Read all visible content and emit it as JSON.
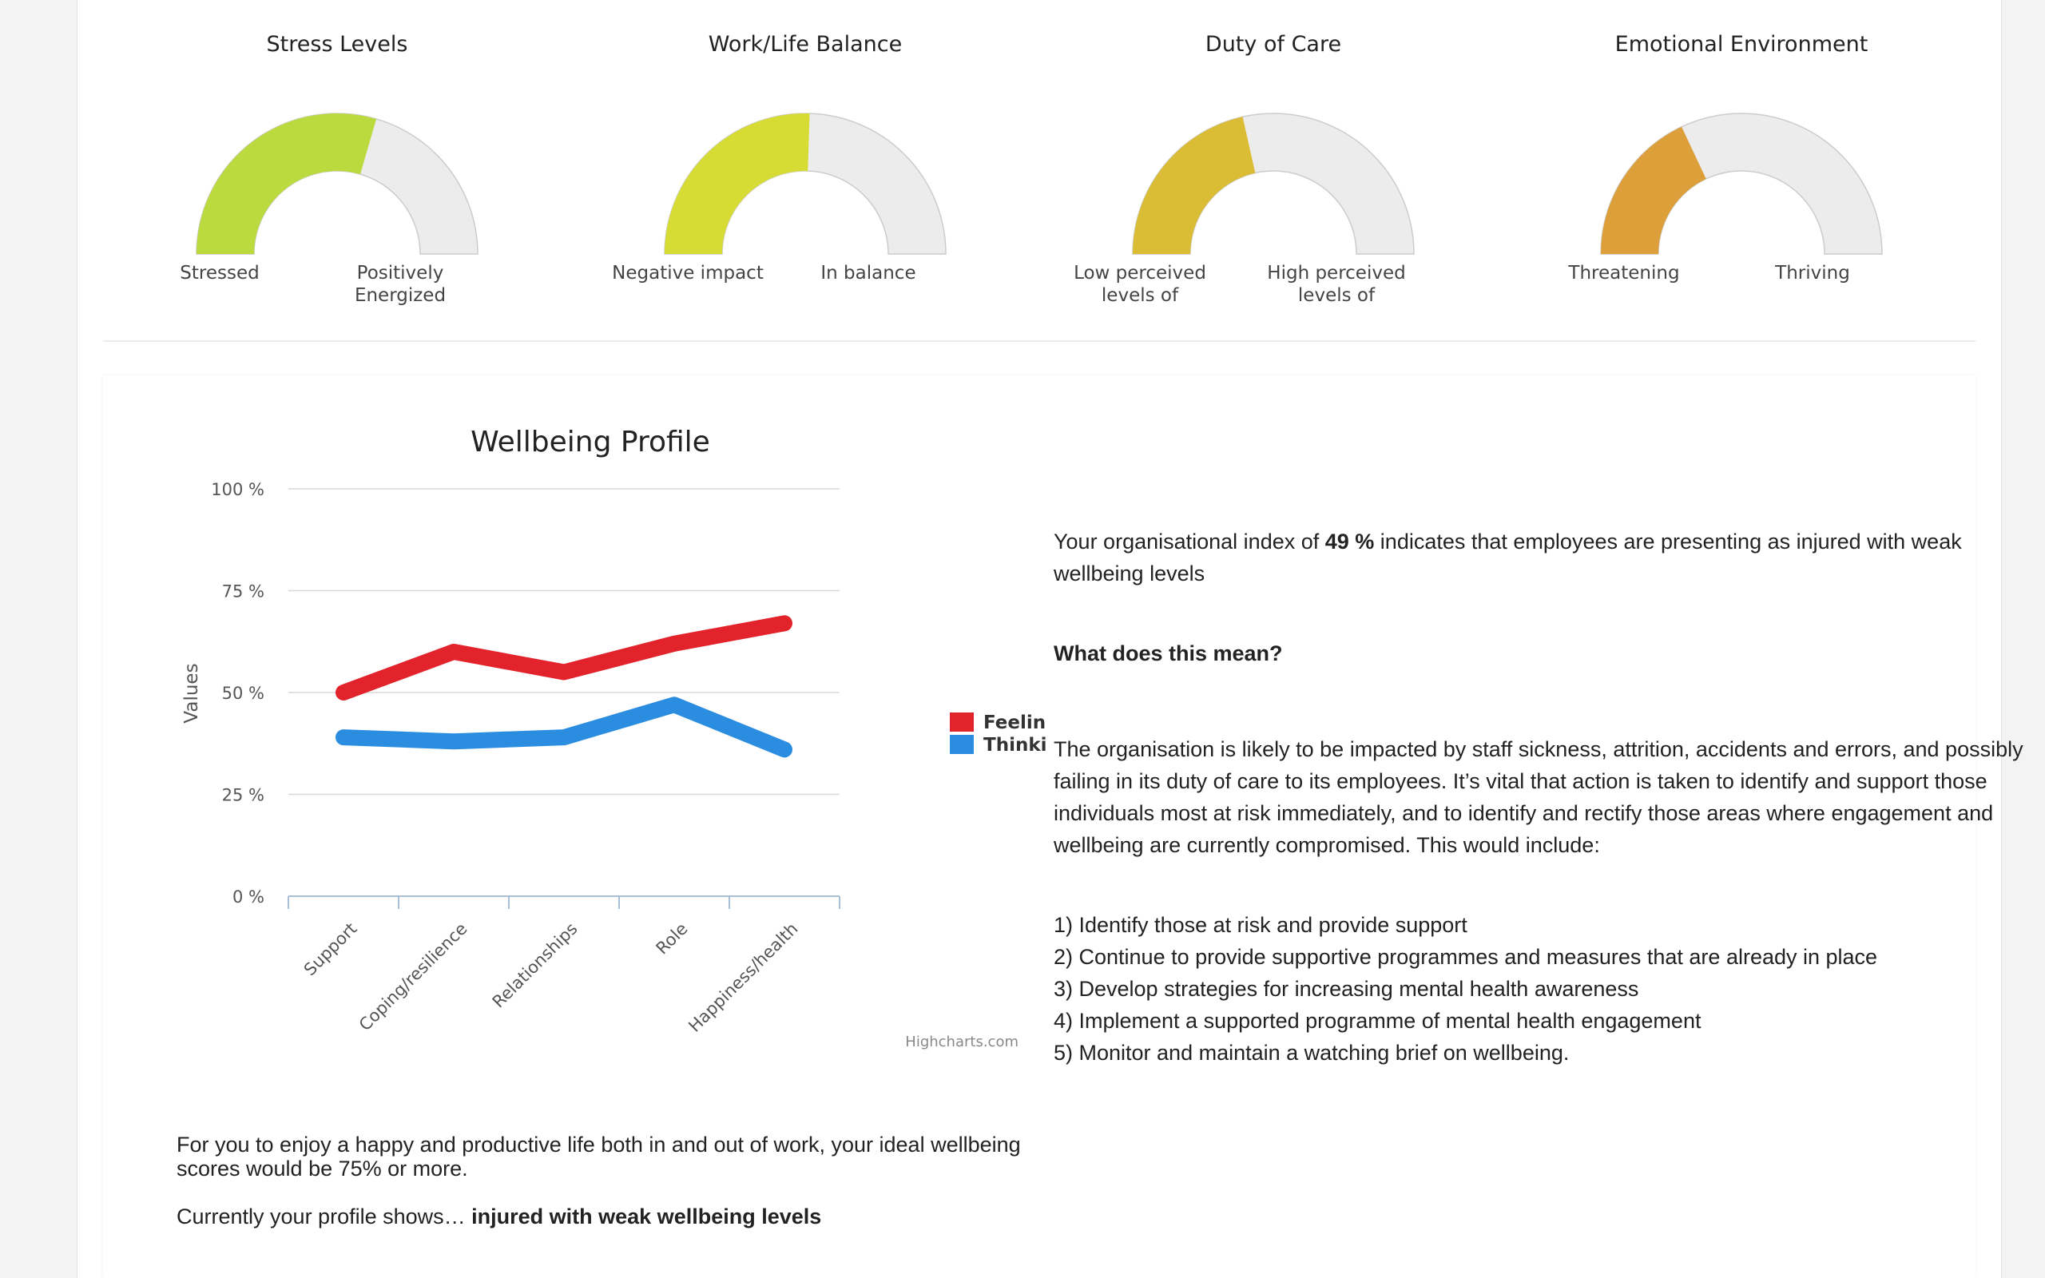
{
  "gauges": [
    {
      "title": "Stress Levels",
      "value": 0.59,
      "color": "#bada3d",
      "min_label": "Stressed",
      "max_label": "Positively Energized"
    },
    {
      "title": "Work/Life Balance",
      "value": 0.51,
      "color": "#d7dc34",
      "min_label": "Negative impact",
      "max_label": "In balance"
    },
    {
      "title": "Duty of Care",
      "value": 0.43,
      "color": "#dabd35",
      "min_label": "Low perceived levels of",
      "max_label": "High perceived levels of"
    },
    {
      "title": "Emotional Environment",
      "value": 0.36,
      "color": "#dd9f3a",
      "min_label": "Threatening",
      "max_label": "Thriving"
    }
  ],
  "chart_data": {
    "type": "line",
    "title": "Wellbeing Profile",
    "ylabel": "Values",
    "ylim": [
      0,
      100
    ],
    "yticks": [
      "0 %",
      "25 %",
      "50 %",
      "75 %",
      "100 %"
    ],
    "categories": [
      "Support",
      "Coping/resilience",
      "Relationships",
      "Role",
      "Happiness/health"
    ],
    "series": [
      {
        "name": "Feeling",
        "color": "#e3232c",
        "values": [
          50,
          60,
          55,
          62,
          67
        ]
      },
      {
        "name": "Thinking",
        "color": "#2b8de0",
        "values": [
          39,
          38,
          39,
          47,
          36
        ]
      }
    ],
    "credit": "Highcharts.com",
    "legend": "right"
  },
  "analysis": {
    "index_pre": "Your organisational index of ",
    "index_value": "49 %",
    "index_post": " indicates that employees are presenting as injured with weak wellbeing levels",
    "question": "What does this mean?",
    "body": "The organisation is likely to be impacted by staff sickness, attrition, accidents and errors, and possibly failing in its duty of care to its employees. It’s vital that action is taken to identify and support those individuals most at risk immediately, and to identify and rectify those areas where engagement and wellbeing are currently compromised. This would include:",
    "steps": [
      "1) Identify those at risk and provide support",
      "2) Continue to provide supportive programmes and measures that are already in place",
      "3) Develop strategies for increasing mental health awareness",
      "4) Implement a supported programme of mental health engagement",
      "5) Monitor and maintain a watching brief on wellbeing."
    ]
  },
  "footer": {
    "ideal": "For you to enjoy a happy and productive life both in and out of work, your ideal wellbeing scores would be 75% or more.",
    "profile_pre": "Currently your profile shows… ",
    "profile_value": "injured with weak wellbeing levels"
  }
}
